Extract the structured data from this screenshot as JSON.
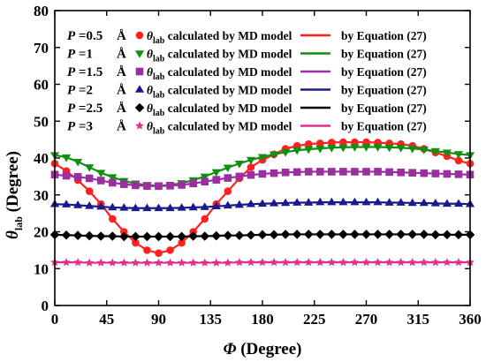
{
  "chart_data": {
    "type": "line",
    "title": "",
    "xlabel": {
      "symbol": "Φ",
      "unit": "(Degree)"
    },
    "ylabel": {
      "symbol": "θ",
      "sub": "lab",
      "unit": "(Degree)"
    },
    "xlim": [
      0,
      360
    ],
    "ylim": [
      0,
      80
    ],
    "xticks": [
      0,
      45,
      90,
      135,
      180,
      225,
      270,
      315,
      360
    ],
    "yticks": [
      0,
      10,
      20,
      30,
      40,
      50,
      60,
      70,
      80
    ],
    "grid": false,
    "legend_position": "top-left",
    "legend": {
      "md_symbol": "θ",
      "md_sub": "lab",
      "md_suffix": "calculated by MD model",
      "eq_label": "by Equation (27)",
      "p_prefix": "P =",
      "unit": "Å"
    },
    "x": [
      0,
      10,
      20,
      30,
      40,
      50,
      60,
      70,
      80,
      90,
      100,
      110,
      120,
      130,
      140,
      150,
      160,
      170,
      180,
      190,
      200,
      210,
      220,
      230,
      240,
      250,
      260,
      270,
      280,
      290,
      300,
      310,
      320,
      330,
      340,
      350,
      360
    ],
    "series": [
      {
        "p": "0.5",
        "color": "#ff2020",
        "marker": "circle",
        "values": [
          38.5,
          36.5,
          34,
          31,
          27.5,
          23.5,
          20,
          17,
          15,
          14.2,
          15,
          17,
          20,
          23.5,
          27.5,
          31,
          34.5,
          37.5,
          39.5,
          41,
          42.5,
          43.3,
          43.8,
          44,
          44.2,
          44.3,
          44.3,
          44.3,
          44.2,
          44,
          43.8,
          43.3,
          42.5,
          41.5,
          40.5,
          39.3,
          38.5
        ]
      },
      {
        "p": "1",
        "color": "#109010",
        "marker": "triangle-down",
        "values": [
          40.8,
          40.2,
          39,
          37.5,
          36,
          34.8,
          33.8,
          33.1,
          32.7,
          32.5,
          32.7,
          33.2,
          34,
          35,
          36.2,
          37.4,
          38.5,
          39.5,
          40.3,
          41,
          41.6,
          42.1,
          42.4,
          42.6,
          42.8,
          42.9,
          43,
          43,
          43,
          42.9,
          42.8,
          42.6,
          42.3,
          41.9,
          41.5,
          41.1,
          40.8
        ]
      },
      {
        "p": "1.5",
        "color": "#9b2fa0",
        "marker": "square",
        "values": [
          35.5,
          35.2,
          34.9,
          34.5,
          33.9,
          33.3,
          32.9,
          32.6,
          32.4,
          32.4,
          32.5,
          32.7,
          33.1,
          33.6,
          34.1,
          34.6,
          35,
          35.4,
          35.7,
          35.9,
          36.1,
          36.2,
          36.3,
          36.3,
          36.3,
          36.3,
          36.3,
          36.3,
          36.3,
          36.2,
          36.1,
          36,
          35.9,
          35.8,
          35.7,
          35.6,
          35.5
        ]
      },
      {
        "p": "2",
        "color": "#1a1a8a",
        "marker": "triangle-up",
        "values": [
          27.5,
          27.4,
          27.2,
          27,
          26.8,
          26.6,
          26.5,
          26.4,
          26.4,
          26.4,
          26.4,
          26.5,
          26.6,
          26.7,
          26.9,
          27.1,
          27.3,
          27.5,
          27.6,
          27.7,
          27.8,
          27.9,
          27.9,
          28,
          28,
          28,
          28,
          28,
          28,
          27.9,
          27.9,
          27.8,
          27.8,
          27.7,
          27.6,
          27.6,
          27.5
        ]
      },
      {
        "p": "2.5",
        "color": "#000000",
        "marker": "diamond",
        "values": [
          19.2,
          19.1,
          19,
          18.9,
          18.8,
          18.8,
          18.7,
          18.7,
          18.7,
          18.7,
          18.7,
          18.7,
          18.8,
          18.8,
          18.9,
          19,
          19,
          19.1,
          19.2,
          19.2,
          19.3,
          19.3,
          19.3,
          19.3,
          19.3,
          19.3,
          19.3,
          19.3,
          19.3,
          19.3,
          19.3,
          19.3,
          19.3,
          19.2,
          19.2,
          19.2,
          19.2
        ]
      },
      {
        "p": "3",
        "color": "#e0308a",
        "marker": "star",
        "values": [
          11.7,
          11.7,
          11.7,
          11.6,
          11.6,
          11.6,
          11.6,
          11.6,
          11.6,
          11.6,
          11.6,
          11.6,
          11.6,
          11.6,
          11.6,
          11.6,
          11.7,
          11.7,
          11.7,
          11.7,
          11.7,
          11.7,
          11.7,
          11.7,
          11.7,
          11.7,
          11.7,
          11.7,
          11.7,
          11.7,
          11.7,
          11.7,
          11.7,
          11.7,
          11.7,
          11.7,
          11.7
        ]
      }
    ]
  }
}
